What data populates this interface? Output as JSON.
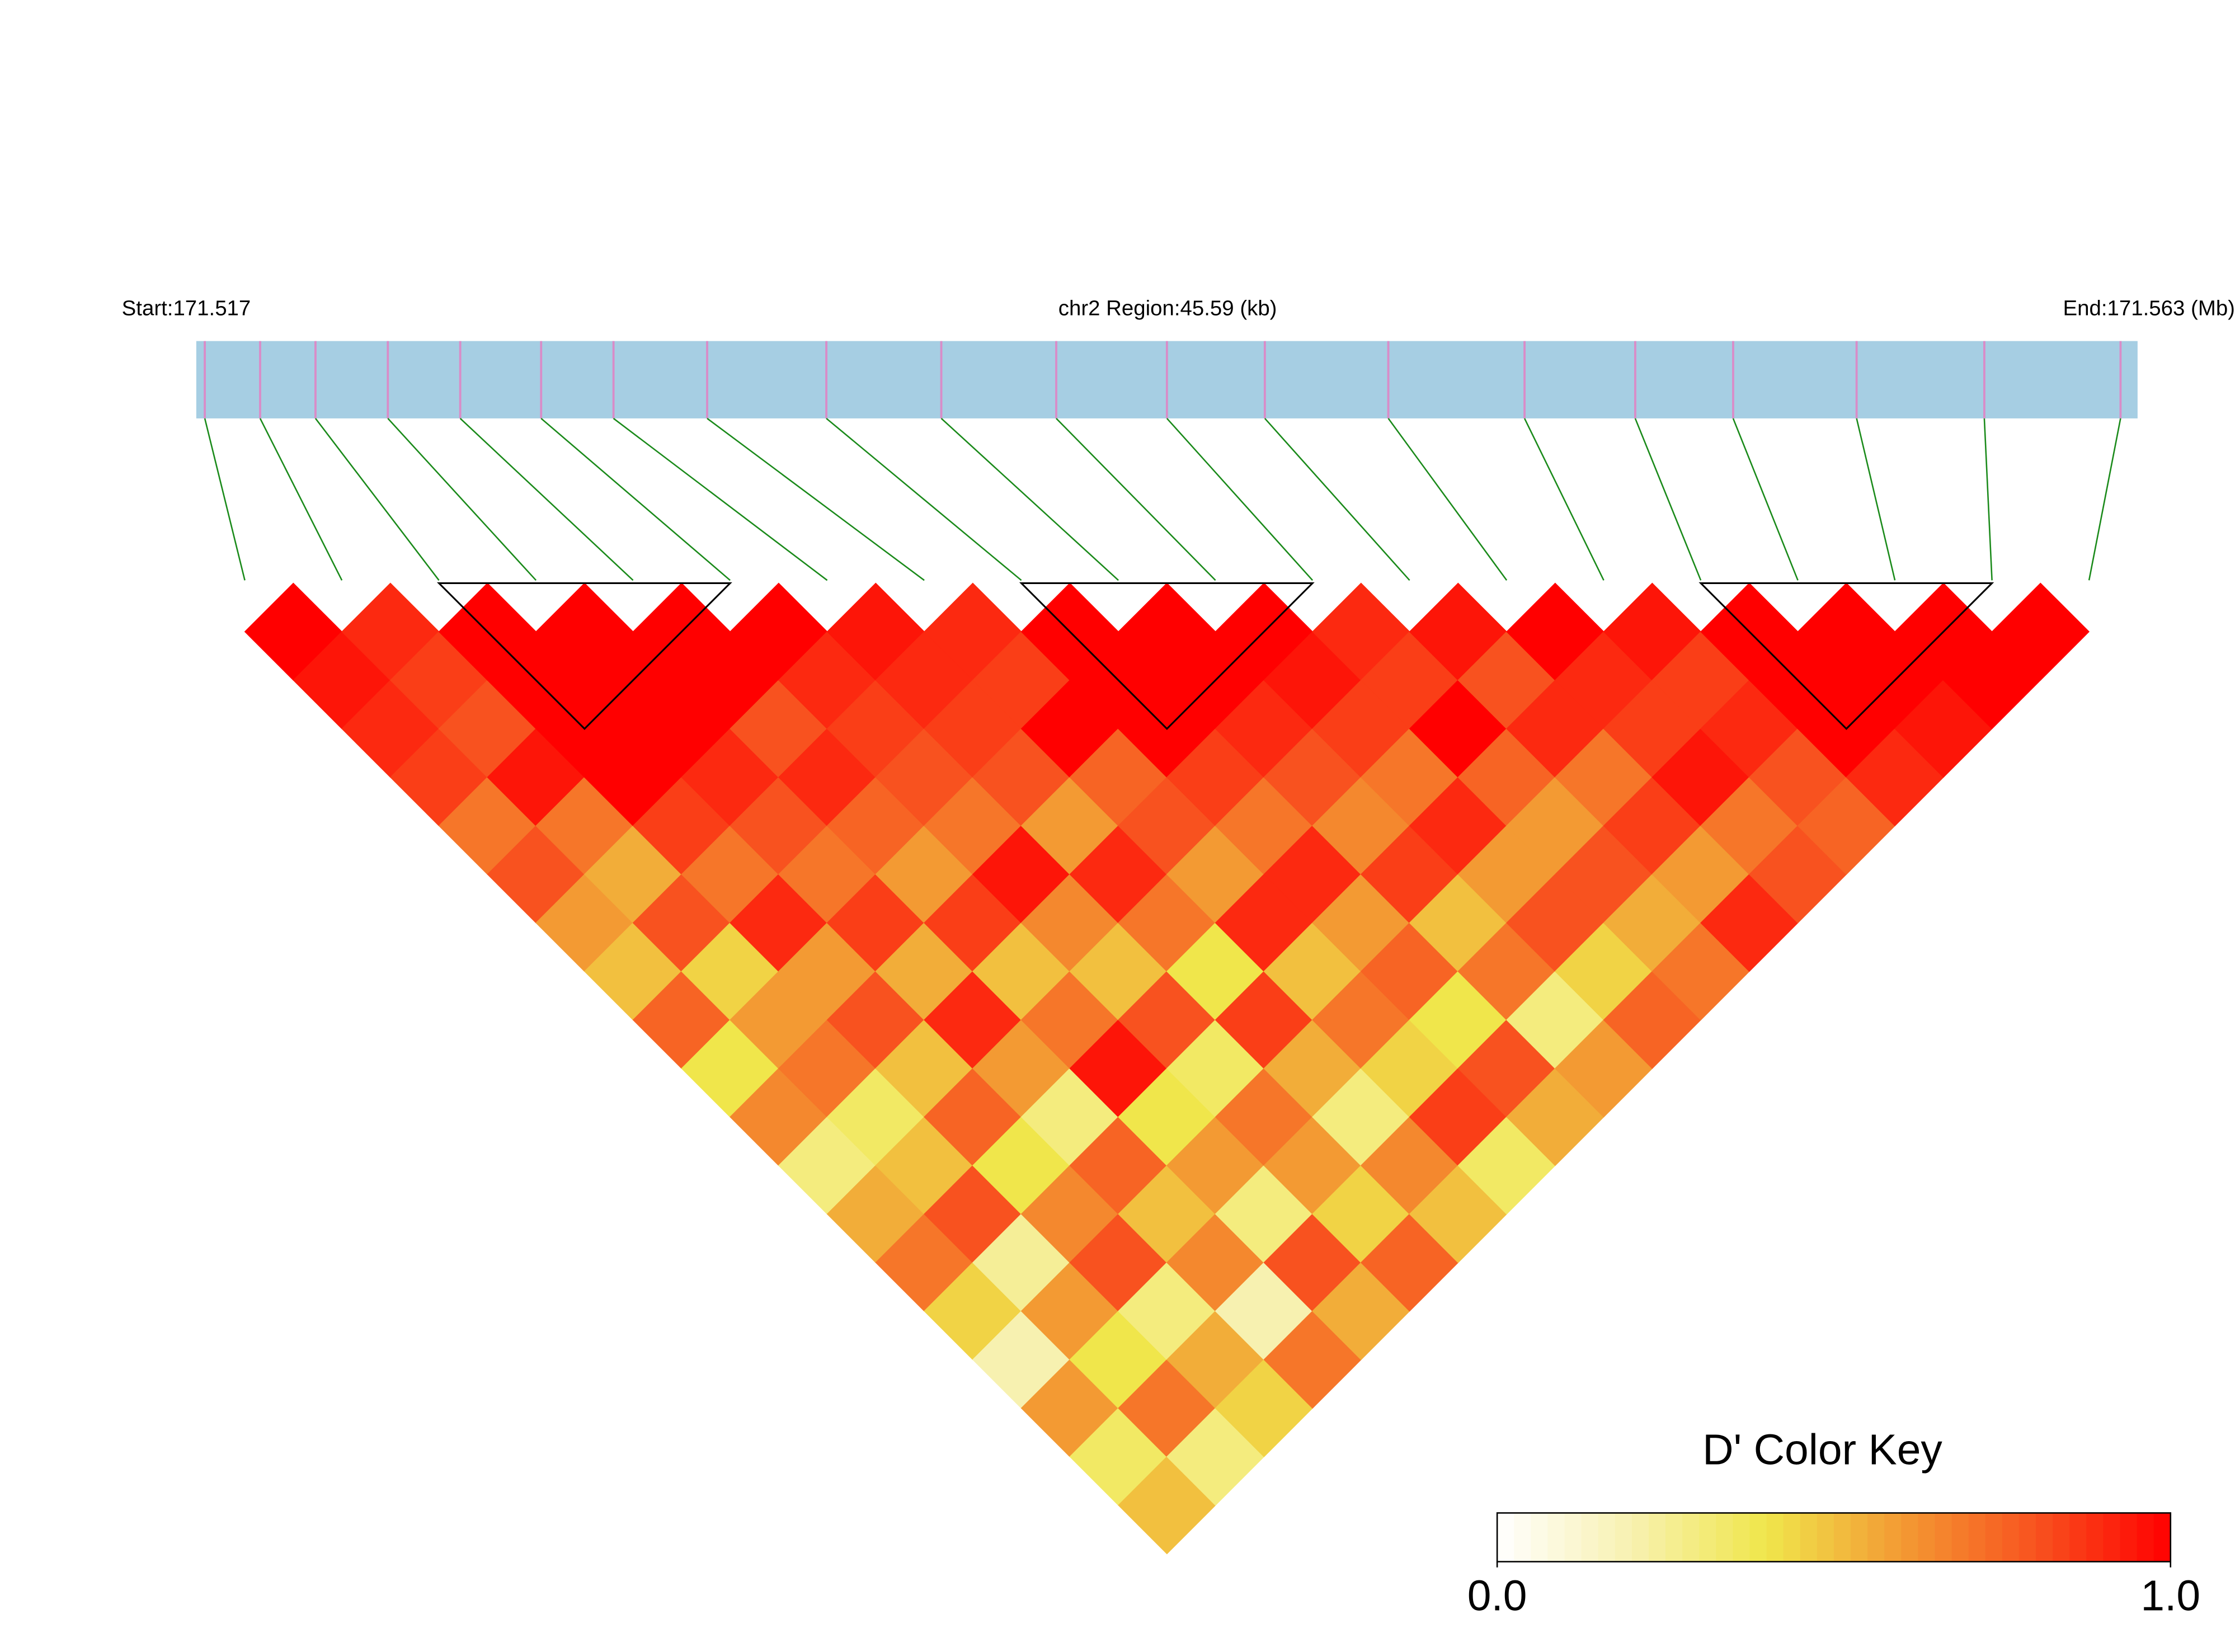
{
  "chart_data": {
    "type": "ld_heatmap",
    "start_label": "Start:171.517",
    "region_label": "chr2 Region:45.59 (kb)",
    "end_label": "End:171.563 (Mb)",
    "xlim": [
      171.517,
      171.5626
    ],
    "snp_positions": [
      171.5172,
      171.5185,
      171.5198,
      171.5215,
      171.5232,
      171.5251,
      171.5268,
      171.529,
      171.5318,
      171.5345,
      171.5372,
      171.5398,
      171.5421,
      171.545,
      171.5482,
      171.5508,
      171.5531,
      171.556,
      171.559,
      171.5622
    ],
    "dprime": [
      [
        1,
        0.95,
        0.9,
        0.85,
        0.7,
        0.8,
        0.6,
        0.5,
        0.75,
        0.4,
        0.65,
        0.3,
        0.55,
        0.7,
        0.45,
        0.2,
        0.6,
        0.35,
        0.5
      ],
      [
        0.9,
        0.85,
        0.8,
        0.95,
        0.7,
        0.55,
        0.8,
        0.45,
        0.6,
        0.7,
        0.35,
        0.5,
        0.8,
        0.25,
        0.6,
        0.4,
        0.7,
        0.3
      ],
      [
        1,
        1,
        1,
        1,
        0.85,
        0.7,
        0.9,
        0.6,
        0.8,
        0.5,
        0.75,
        0.4,
        0.65,
        0.8,
        0.3,
        0.55,
        0.45
      ],
      [
        1,
        1,
        1,
        0.9,
        0.8,
        0.7,
        0.85,
        0.55,
        0.9,
        0.6,
        0.3,
        0.75,
        0.5,
        0.65,
        0.2,
        0.7
      ],
      [
        1,
        1,
        0.8,
        0.9,
        0.75,
        0.6,
        0.85,
        0.5,
        0.7,
        0.95,
        0.4,
        0.6,
        0.3,
        0.8,
        0.55
      ],
      [
        1,
        0.9,
        0.85,
        0.8,
        0.7,
        0.95,
        0.65,
        0.5,
        0.8,
        0.35,
        0.7,
        0.6,
        0.45,
        0.75
      ],
      [
        0.95,
        0.9,
        0.85,
        0.8,
        0.6,
        0.9,
        0.7,
        0.4,
        0.85,
        0.55,
        0.3,
        0.65,
        0.5
      ],
      [
        0.9,
        0.85,
        1,
        0.75,
        0.8,
        0.6,
        0.9,
        0.5,
        0.7,
        0.45,
        0.85,
        0.35
      ],
      [
        1,
        1,
        1,
        0.85,
        0.7,
        0.9,
        0.6,
        0.75,
        0.4,
        0.8,
        0.55
      ],
      [
        1,
        1,
        0.9,
        0.8,
        0.65,
        0.85,
        0.5,
        0.7,
        0.3,
        0.6
      ],
      [
        1,
        0.95,
        0.85,
        0.7,
        0.9,
        0.6,
        0.8,
        0.45,
        0.75
      ],
      [
        0.9,
        0.85,
        1,
        0.75,
        0.6,
        0.8,
        0.55,
        0.7
      ],
      [
        0.95,
        0.8,
        0.9,
        0.7,
        0.85,
        0.6,
        0.9
      ],
      [
        1,
        0.9,
        0.85,
        0.95,
        0.7,
        0.8
      ],
      [
        0.95,
        0.85,
        0.9,
        0.8,
        0.75
      ],
      [
        1,
        1,
        1,
        0.9
      ],
      [
        1,
        1,
        0.95
      ],
      [
        1,
        1
      ],
      [
        1
      ]
    ],
    "blocks": [
      [
        2,
        5
      ],
      [
        8,
        11
      ],
      [
        15,
        18
      ]
    ],
    "colorkey": {
      "title": "D' Color Key",
      "lim": [
        0,
        1
      ],
      "ticks": [
        {
          "value": 0,
          "label": "0.0"
        },
        {
          "value": 1,
          "label": "1.0"
        }
      ],
      "colors": [
        "#ffffff",
        "#f7f1b0",
        "#f0e64b",
        "#f39a33",
        "#f8521f",
        "#ff0000"
      ]
    }
  }
}
